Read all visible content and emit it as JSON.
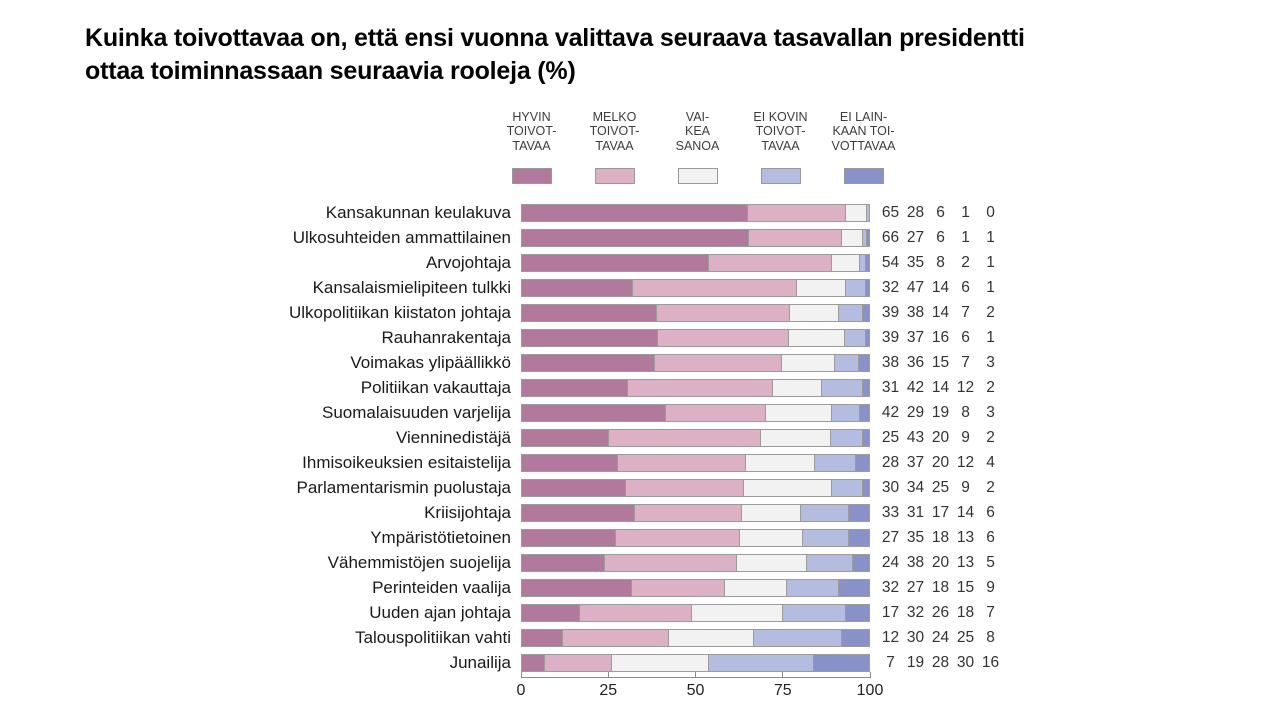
{
  "header": {
    "title": "Kuinka toivottavaa on, että ensi vuonna valittava seuraava tasavallan presidentti\nottaa toiminnassaan seuraavia rooleja (%)"
  },
  "colors": {
    "hyvin_toivottavaa": "#b1799b",
    "melko_toivottavaa": "#dcb1c6",
    "vaikea_sanoa": "#f2f2f2",
    "ei_kovin_toivottavaa": "#b4bcdf",
    "ei_lainkaan_toivottavaa": "#8992c8",
    "segment_border": "#9b9b9b",
    "axis": "#8a8a8a",
    "background": "#ffffff"
  },
  "chart_data": {
    "type": "bar",
    "orientation": "horizontal",
    "stacked": true,
    "title": "Kuinka toivottavaa on, että ensi vuonna valittava seuraava tasavallan presidentti ottaa toiminnassaan seuraavia rooleja (%)",
    "legend_position": "top",
    "value_labels_position": "right",
    "grid": false,
    "xlim": [
      0,
      100
    ],
    "x_ticks": [
      0,
      25,
      50,
      75,
      100
    ],
    "legend": [
      {
        "label": "HYVIN\nTOIVOT-\nTAVAA",
        "color": "#b1799b"
      },
      {
        "label": "MELKO\nTOIVOT-\nTAVAA",
        "color": "#dcb1c6"
      },
      {
        "label": "VAI-\nKEA\nSANOA",
        "color": "#f2f2f2"
      },
      {
        "label": "EI KOVIN\nTOIVOT-\nTAVAA",
        "color": "#b4bcdf"
      },
      {
        "label": "EI LAIN-\nKAAN TOI-\nVOTTAVAA",
        "color": "#8992c8"
      }
    ],
    "categories": [
      "Kansakunnan keulakuva",
      "Ulkosuhteiden ammattilainen",
      "Arvojohtaja",
      "Kansalaismielipiteen tulkki",
      "Ulkopolitiikan kiistaton johtaja",
      "Rauhanrakentaja",
      "Voimakas ylipäällikkö",
      "Politiikan vakauttaja",
      "Suomalaisuuden varjelija",
      "Vienninedistäjä",
      "Ihmisoikeuksien esitaistelija",
      "Parlamentarismin puolustaja",
      "Kriisijohtaja",
      "Ympäristötietoinen",
      "Vähemmistöjen suojelija",
      "Perinteiden vaalija",
      "Uuden ajan johtaja",
      "Talouspolitiikan vahti",
      "Junailija"
    ],
    "series": [
      {
        "name": "HYVIN TOIVOTTAVAA",
        "color": "#b1799b",
        "values": [
          65,
          66,
          54,
          32,
          39,
          39,
          38,
          31,
          42,
          25,
          28,
          30,
          33,
          27,
          24,
          32,
          17,
          12,
          7
        ]
      },
      {
        "name": "MELKO TOIVOTTAVAA",
        "color": "#dcb1c6",
        "values": [
          28,
          27,
          35,
          47,
          38,
          37,
          36,
          42,
          29,
          43,
          37,
          34,
          31,
          35,
          38,
          27,
          32,
          30,
          19
        ]
      },
      {
        "name": "VAIKEA SANOA",
        "color": "#f2f2f2",
        "values": [
          6,
          6,
          8,
          14,
          14,
          16,
          15,
          14,
          19,
          20,
          20,
          25,
          17,
          18,
          20,
          18,
          26,
          24,
          28
        ]
      },
      {
        "name": "EI KOVIN TOIVOTTAVAA",
        "color": "#b4bcdf",
        "values": [
          1,
          1,
          2,
          6,
          7,
          6,
          7,
          12,
          8,
          9,
          12,
          9,
          14,
          13,
          13,
          15,
          18,
          25,
          30
        ]
      },
      {
        "name": "EI LAINKAAN TOIVOTTAVAA",
        "color": "#8992c8",
        "values": [
          0,
          1,
          1,
          1,
          2,
          1,
          3,
          2,
          3,
          2,
          4,
          2,
          6,
          6,
          5,
          9,
          7,
          8,
          16
        ]
      }
    ]
  }
}
